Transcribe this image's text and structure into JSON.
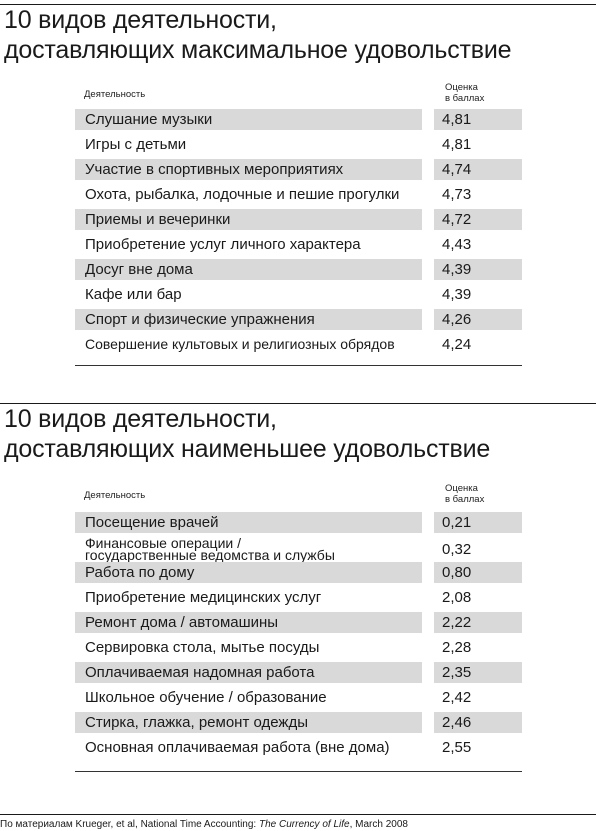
{
  "sections": [
    {
      "title_lines": [
        "10 видов деятельности,",
        "доставляющих максимальное удовольствие"
      ],
      "col_activity": "Деятельность",
      "col_score_lines": [
        "Оценка",
        "в баллах"
      ],
      "rows": [
        {
          "name": "Слушание музыки",
          "score": "4,81"
        },
        {
          "name": "Игры с детьми",
          "score": "4,81"
        },
        {
          "name": "Участие в спортивных мероприятиях",
          "score": "4,74"
        },
        {
          "name": "Охота, рыбалка, лодочные и пешие прогулки",
          "score": "4,73"
        },
        {
          "name": "Приемы и вечеринки",
          "score": "4,72"
        },
        {
          "name": "Приобретение услуг личного характера",
          "score": "4,43"
        },
        {
          "name": "Досуг вне дома",
          "score": "4,39"
        },
        {
          "name": "Кафе или бар",
          "score": "4,39"
        },
        {
          "name": "Спорт и физические упражнения",
          "score": "4,26"
        },
        {
          "name": "Совершение культовых и религиозных обрядов",
          "score": "4,24"
        }
      ]
    },
    {
      "title_lines": [
        "10 видов деятельности,",
        "доставляющих наименьшее удовольствие"
      ],
      "col_activity": "Деятельность",
      "col_score_lines": [
        "Оценка",
        "в баллах"
      ],
      "rows": [
        {
          "name": "Посещение врачей",
          "score": "0,21"
        },
        {
          "name_lines": [
            "Финансовые операции /",
            "государственные ведомства и службы"
          ],
          "score": "0,32"
        },
        {
          "name": "Работа по дому",
          "score": "0,80"
        },
        {
          "name": "Приобретение медицинских услуг",
          "score": "2,08"
        },
        {
          "name": "Ремонт дома / автомашины",
          "score": "2,22"
        },
        {
          "name": "Сервировка стола, мытье посуды",
          "score": "2,28"
        },
        {
          "name": "Оплачиваемая надомная работа",
          "score": "2,35"
        },
        {
          "name": "Школьное обучение / образование",
          "score": "2,42"
        },
        {
          "name": "Стирка, глажка, ремонт одежды",
          "score": "2,46"
        },
        {
          "name": "Основная оплачиваемая работа (вне дома)",
          "score": "2,55"
        }
      ]
    }
  ],
  "source": {
    "prefix": "По материалам Krueger, et al, National Time Accounting: ",
    "title": "The Currency of Life",
    "suffix": ", March 2008"
  }
}
